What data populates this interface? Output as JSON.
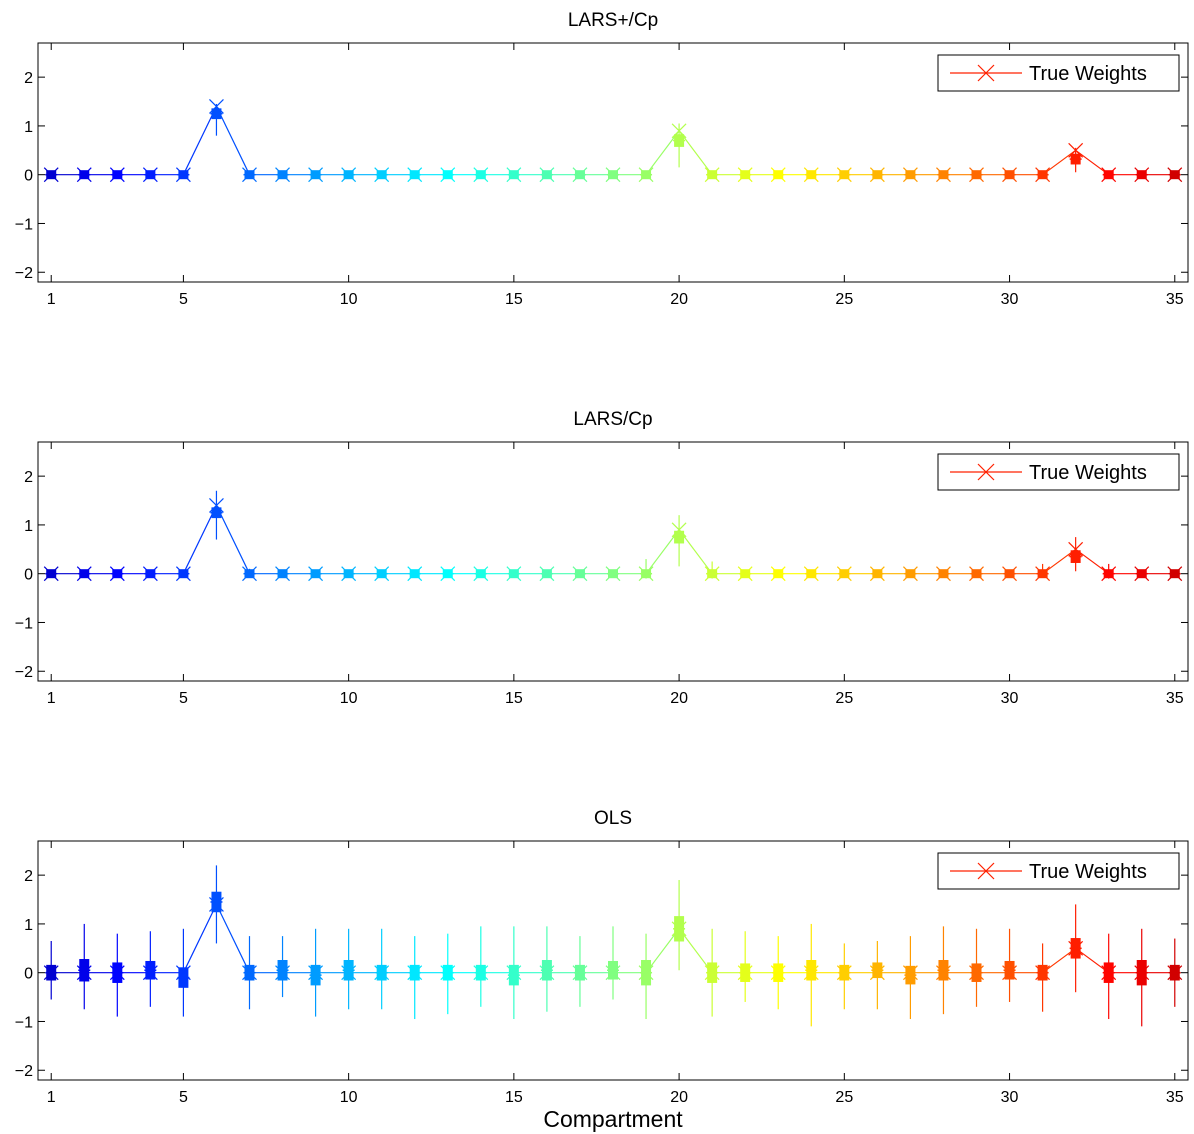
{
  "xlabel": "Compartment",
  "legend_label": "True Weights",
  "chart_data": [
    {
      "type": "box",
      "title": "LARS+/Cp",
      "xlim": [
        0.6,
        35.4
      ],
      "ylim": [
        -2.2,
        2.7
      ],
      "xticks": [
        1,
        5,
        10,
        15,
        20,
        25,
        30,
        35
      ],
      "yticks": [
        -2,
        -1,
        0,
        1,
        2
      ],
      "legend": "top-right",
      "true_weights": [
        0,
        0,
        0,
        0,
        0,
        1.4,
        0,
        0,
        0,
        0,
        0,
        0,
        0,
        0,
        0,
        0,
        0,
        0,
        0,
        0.9,
        0,
        0,
        0,
        0,
        0,
        0,
        0,
        0,
        0,
        0,
        0,
        0.5,
        0,
        0,
        0
      ],
      "medians": [
        0,
        0,
        0,
        0,
        0,
        1.25,
        0,
        0,
        0,
        0,
        0,
        0,
        0,
        0,
        0,
        0,
        0,
        0,
        0,
        0.7,
        0,
        0,
        0,
        0,
        0,
        0,
        0,
        0,
        0,
        0,
        0,
        0.32,
        0,
        0,
        0
      ],
      "box_halfwidth": [
        0.03,
        0.03,
        0.03,
        0.03,
        0,
        0.1,
        0,
        0.03,
        0.03,
        0.03,
        0.03,
        0.03,
        0.03,
        0.03,
        0.03,
        0.03,
        0.02,
        0,
        0.03,
        0.12,
        0,
        0,
        0.02,
        0.02,
        0.02,
        0.02,
        0.02,
        0.02,
        0.02,
        0.02,
        0,
        0.1,
        0.02,
        0.02,
        0
      ],
      "whisker_low": [
        0,
        0,
        0,
        0,
        0,
        0.8,
        0,
        0,
        0,
        0,
        0,
        0,
        0,
        0,
        0,
        0,
        0,
        0,
        0,
        0.15,
        0,
        0,
        0,
        0,
        0,
        0,
        0,
        0,
        0,
        0,
        0,
        0.05,
        0,
        0,
        0
      ],
      "whisker_high": [
        0,
        0,
        0,
        0,
        0,
        1.45,
        0,
        0,
        0,
        0,
        0,
        0,
        0,
        0,
        0,
        0,
        0,
        0,
        0,
        1.05,
        0,
        0,
        0,
        0,
        0,
        0,
        0,
        0,
        0,
        0,
        0,
        0.55,
        0,
        0,
        0
      ]
    },
    {
      "type": "box",
      "title": "LARS/Cp",
      "xlim": [
        0.6,
        35.4
      ],
      "ylim": [
        -2.2,
        2.7
      ],
      "xticks": [
        1,
        5,
        10,
        15,
        20,
        25,
        30,
        35
      ],
      "yticks": [
        -2,
        -1,
        0,
        1,
        2
      ],
      "legend": "top-right",
      "true_weights": [
        0,
        0,
        0,
        0,
        0,
        1.4,
        0,
        0,
        0,
        0,
        0,
        0,
        0,
        0,
        0,
        0,
        0,
        0,
        0,
        0.9,
        0,
        0,
        0,
        0,
        0,
        0,
        0,
        0,
        0,
        0,
        0,
        0.5,
        0,
        0,
        0
      ],
      "medians": [
        0,
        0,
        0,
        0,
        0,
        1.25,
        0,
        0,
        0,
        0,
        0,
        0,
        0,
        0,
        0,
        0,
        0,
        0,
        0,
        0.75,
        0,
        0,
        0,
        0,
        0,
        0,
        0,
        0,
        0,
        0,
        0,
        0.35,
        0,
        0,
        0
      ],
      "box_halfwidth": [
        0.05,
        0.05,
        0.03,
        0.03,
        0.03,
        0.1,
        0.03,
        0.03,
        0.03,
        0.03,
        0.03,
        0.03,
        0.03,
        0.03,
        0.03,
        0.03,
        0.02,
        0.02,
        0.05,
        0.12,
        0.03,
        0,
        0.02,
        0.02,
        0.02,
        0.02,
        0.02,
        0.02,
        0.02,
        0.03,
        0.03,
        0.12,
        0.05,
        0.02,
        0
      ],
      "whisker_low": [
        -0.05,
        -0.05,
        0,
        0,
        -0.05,
        0.7,
        -0.05,
        0,
        0,
        0,
        0,
        0,
        0,
        0,
        0,
        0,
        0,
        0,
        -0.1,
        0.15,
        -0.1,
        0,
        0,
        0,
        0,
        0,
        0,
        0,
        0,
        -0.05,
        -0.05,
        0.05,
        -0.1,
        -0.05,
        0
      ],
      "whisker_high": [
        0.05,
        0.05,
        0,
        0,
        0.05,
        1.7,
        0.1,
        0,
        0,
        0,
        0,
        0,
        0,
        0,
        0,
        0,
        0,
        0,
        0.3,
        1.2,
        0.25,
        0,
        0,
        0,
        0,
        0,
        0,
        0,
        0,
        0.05,
        0.2,
        0.75,
        0.2,
        0.05,
        0
      ]
    },
    {
      "type": "box",
      "title": "OLS",
      "xlim": [
        0.6,
        35.4
      ],
      "ylim": [
        -2.2,
        2.7
      ],
      "xticks": [
        1,
        5,
        10,
        15,
        20,
        25,
        30,
        35
      ],
      "yticks": [
        -2,
        -1,
        0,
        1,
        2
      ],
      "legend": "top-right",
      "true_weights": [
        0,
        0,
        0,
        0,
        0,
        1.4,
        0,
        0,
        0,
        0,
        0,
        0,
        0,
        0,
        0,
        0,
        0,
        0,
        0,
        0.9,
        0,
        0,
        0,
        0,
        0,
        0,
        0,
        0,
        0,
        0,
        0,
        0.5,
        0,
        0,
        0
      ],
      "medians": [
        0,
        0.05,
        0,
        0.05,
        -0.1,
        1.45,
        0,
        0.05,
        -0.05,
        0.05,
        0,
        0,
        0,
        0,
        -0.05,
        0.05,
        0,
        0.05,
        0,
        0.9,
        0,
        0,
        0,
        0.05,
        0,
        0.05,
        -0.05,
        0.05,
        0,
        0.05,
        0,
        0.5,
        0,
        0,
        0
      ],
      "box_halfwidth": [
        0.15,
        0.22,
        0.2,
        0.18,
        0.2,
        0.2,
        0.15,
        0.2,
        0.2,
        0.2,
        0.15,
        0.15,
        0.15,
        0.15,
        0.2,
        0.2,
        0.15,
        0.18,
        0.25,
        0.25,
        0.2,
        0.18,
        0.18,
        0.2,
        0.15,
        0.15,
        0.18,
        0.2,
        0.18,
        0.18,
        0.15,
        0.2,
        0.2,
        0.25,
        0.15
      ],
      "whisker_low": [
        -0.55,
        -0.75,
        -0.9,
        -0.7,
        -0.9,
        0.6,
        -0.75,
        -0.5,
        -0.9,
        -0.75,
        -0.75,
        -0.95,
        -0.85,
        -0.7,
        -0.95,
        -0.8,
        -0.7,
        -0.55,
        -0.95,
        0.05,
        -0.9,
        -0.6,
        -0.75,
        -1.1,
        -0.75,
        -0.75,
        -0.95,
        -0.85,
        -0.7,
        -0.6,
        -0.8,
        -0.4,
        -0.95,
        -1.1,
        -0.7
      ],
      "whisker_high": [
        0.65,
        1.0,
        0.8,
        0.85,
        0.9,
        2.2,
        0.75,
        0.75,
        0.9,
        0.9,
        0.9,
        0.75,
        0.8,
        0.95,
        0.95,
        0.95,
        0.75,
        0.95,
        0.8,
        1.9,
        0.9,
        0.85,
        0.75,
        1.0,
        0.6,
        0.65,
        0.75,
        0.95,
        0.9,
        0.9,
        0.6,
        1.4,
        0.8,
        0.9,
        0.7
      ]
    }
  ]
}
